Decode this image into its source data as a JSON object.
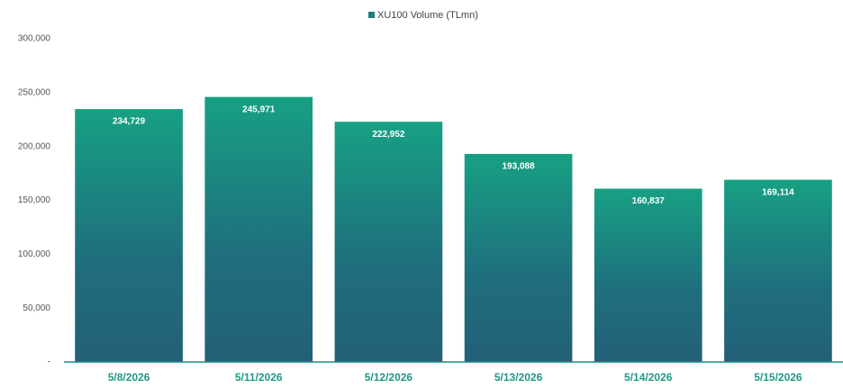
{
  "chart_data": {
    "type": "bar",
    "categories": [
      "5/8/2026",
      "5/11/2026",
      "5/12/2026",
      "5/13/2026",
      "5/14/2026",
      "5/15/2026"
    ],
    "series": [
      {
        "name": "XU100 Volume (TLmn)",
        "color": "#1f7d80",
        "values": [
          234729,
          245971,
          222952,
          193088,
          160837,
          169114
        ],
        "value_labels": [
          "234,729",
          "245,971",
          "222,952",
          "193,088",
          "160,837",
          "169,114"
        ]
      }
    ],
    "ylim": [
      0,
      300000
    ],
    "yticks": [
      {
        "value": 0,
        "label": "-"
      },
      {
        "value": 50000,
        "label": "50,000"
      },
      {
        "value": 100000,
        "label": "100,000"
      },
      {
        "value": 150000,
        "label": "150,000"
      },
      {
        "value": 200000,
        "label": "200,000"
      },
      {
        "value": 250000,
        "label": "250,000"
      },
      {
        "value": 300000,
        "label": "300,000"
      }
    ],
    "grid": false,
    "legend": "top"
  }
}
